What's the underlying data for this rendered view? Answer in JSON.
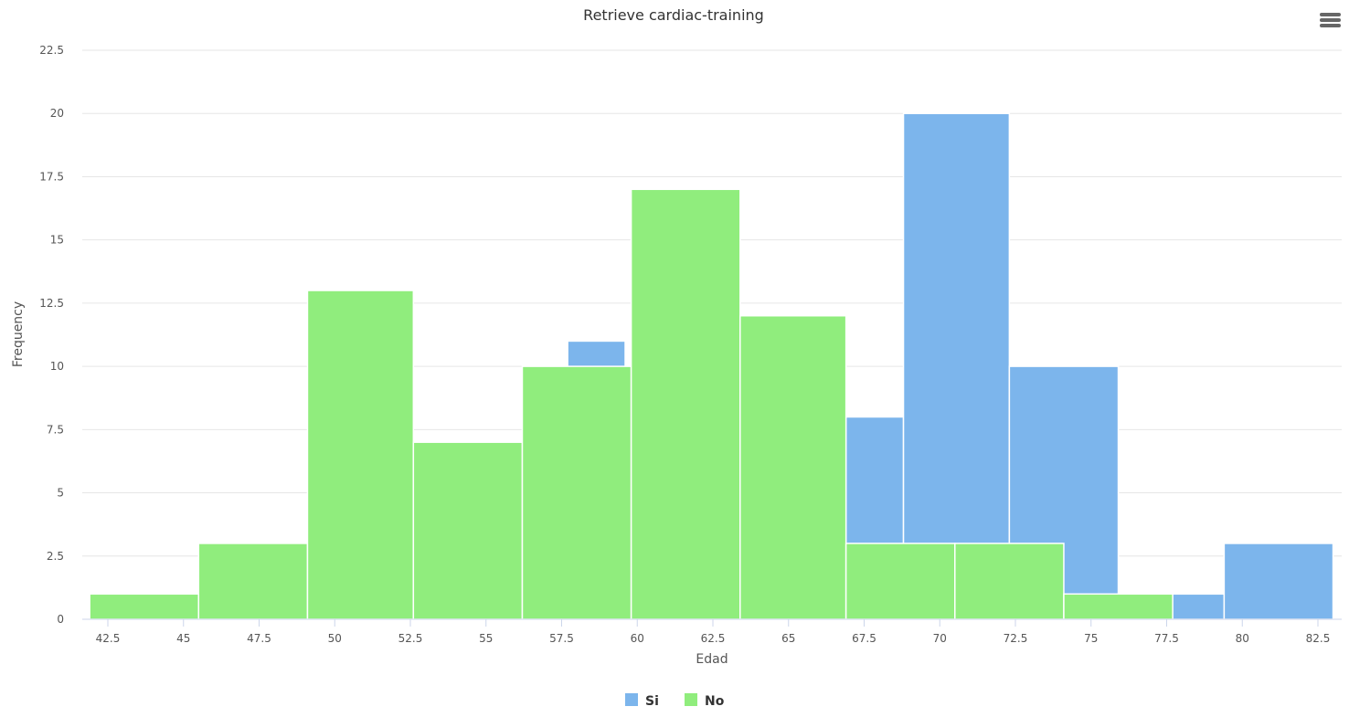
{
  "menu": {
    "icon": "hamburger-menu-icon"
  },
  "chart_data": {
    "type": "bar",
    "title": "Retrieve cardiac-training",
    "xlabel": "Edad",
    "ylabel": "Frequency",
    "xlim": [
      41.5,
      83.3
    ],
    "ylim": [
      0,
      22.5
    ],
    "x_ticks": [
      "42.5",
      "45",
      "47.5",
      "50",
      "52.5",
      "55",
      "57.5",
      "60",
      "62.5",
      "65",
      "67.5",
      "70",
      "72.5",
      "75",
      "77.5",
      "80",
      "82.5"
    ],
    "y_ticks": [
      "0",
      "2.5",
      "5",
      "7.5",
      "10",
      "12.5",
      "15",
      "17.5",
      "20",
      "22.5"
    ],
    "grid": true,
    "legend": "bottom-center",
    "series": [
      {
        "name": "Si",
        "color": "#7cb5ec",
        "bins": [
          {
            "x0": 57.7,
            "x1": 59.6,
            "value": 11
          },
          {
            "x0": 66.9,
            "x1": 68.8,
            "value": 8
          },
          {
            "x0": 68.8,
            "x1": 72.3,
            "value": 20
          },
          {
            "x0": 72.3,
            "x1": 75.9,
            "value": 10
          },
          {
            "x0": 77.4,
            "x1": 79.4,
            "value": 1
          },
          {
            "x0": 79.4,
            "x1": 83.0,
            "value": 3
          }
        ]
      },
      {
        "name": "No",
        "color": "#90ed7d",
        "bins": [
          {
            "x0": 41.9,
            "x1": 45.5,
            "value": 1
          },
          {
            "x0": 45.5,
            "x1": 49.1,
            "value": 3
          },
          {
            "x0": 49.1,
            "x1": 52.6,
            "value": 13
          },
          {
            "x0": 52.6,
            "x1": 56.2,
            "value": 7
          },
          {
            "x0": 56.2,
            "x1": 59.8,
            "value": 10
          },
          {
            "x0": 59.8,
            "x1": 63.4,
            "value": 17
          },
          {
            "x0": 63.4,
            "x1": 66.9,
            "value": 12
          },
          {
            "x0": 66.9,
            "x1": 70.5,
            "value": 3
          },
          {
            "x0": 70.5,
            "x1": 74.1,
            "value": 3
          },
          {
            "x0": 74.1,
            "x1": 77.7,
            "value": 1
          }
        ]
      }
    ]
  }
}
